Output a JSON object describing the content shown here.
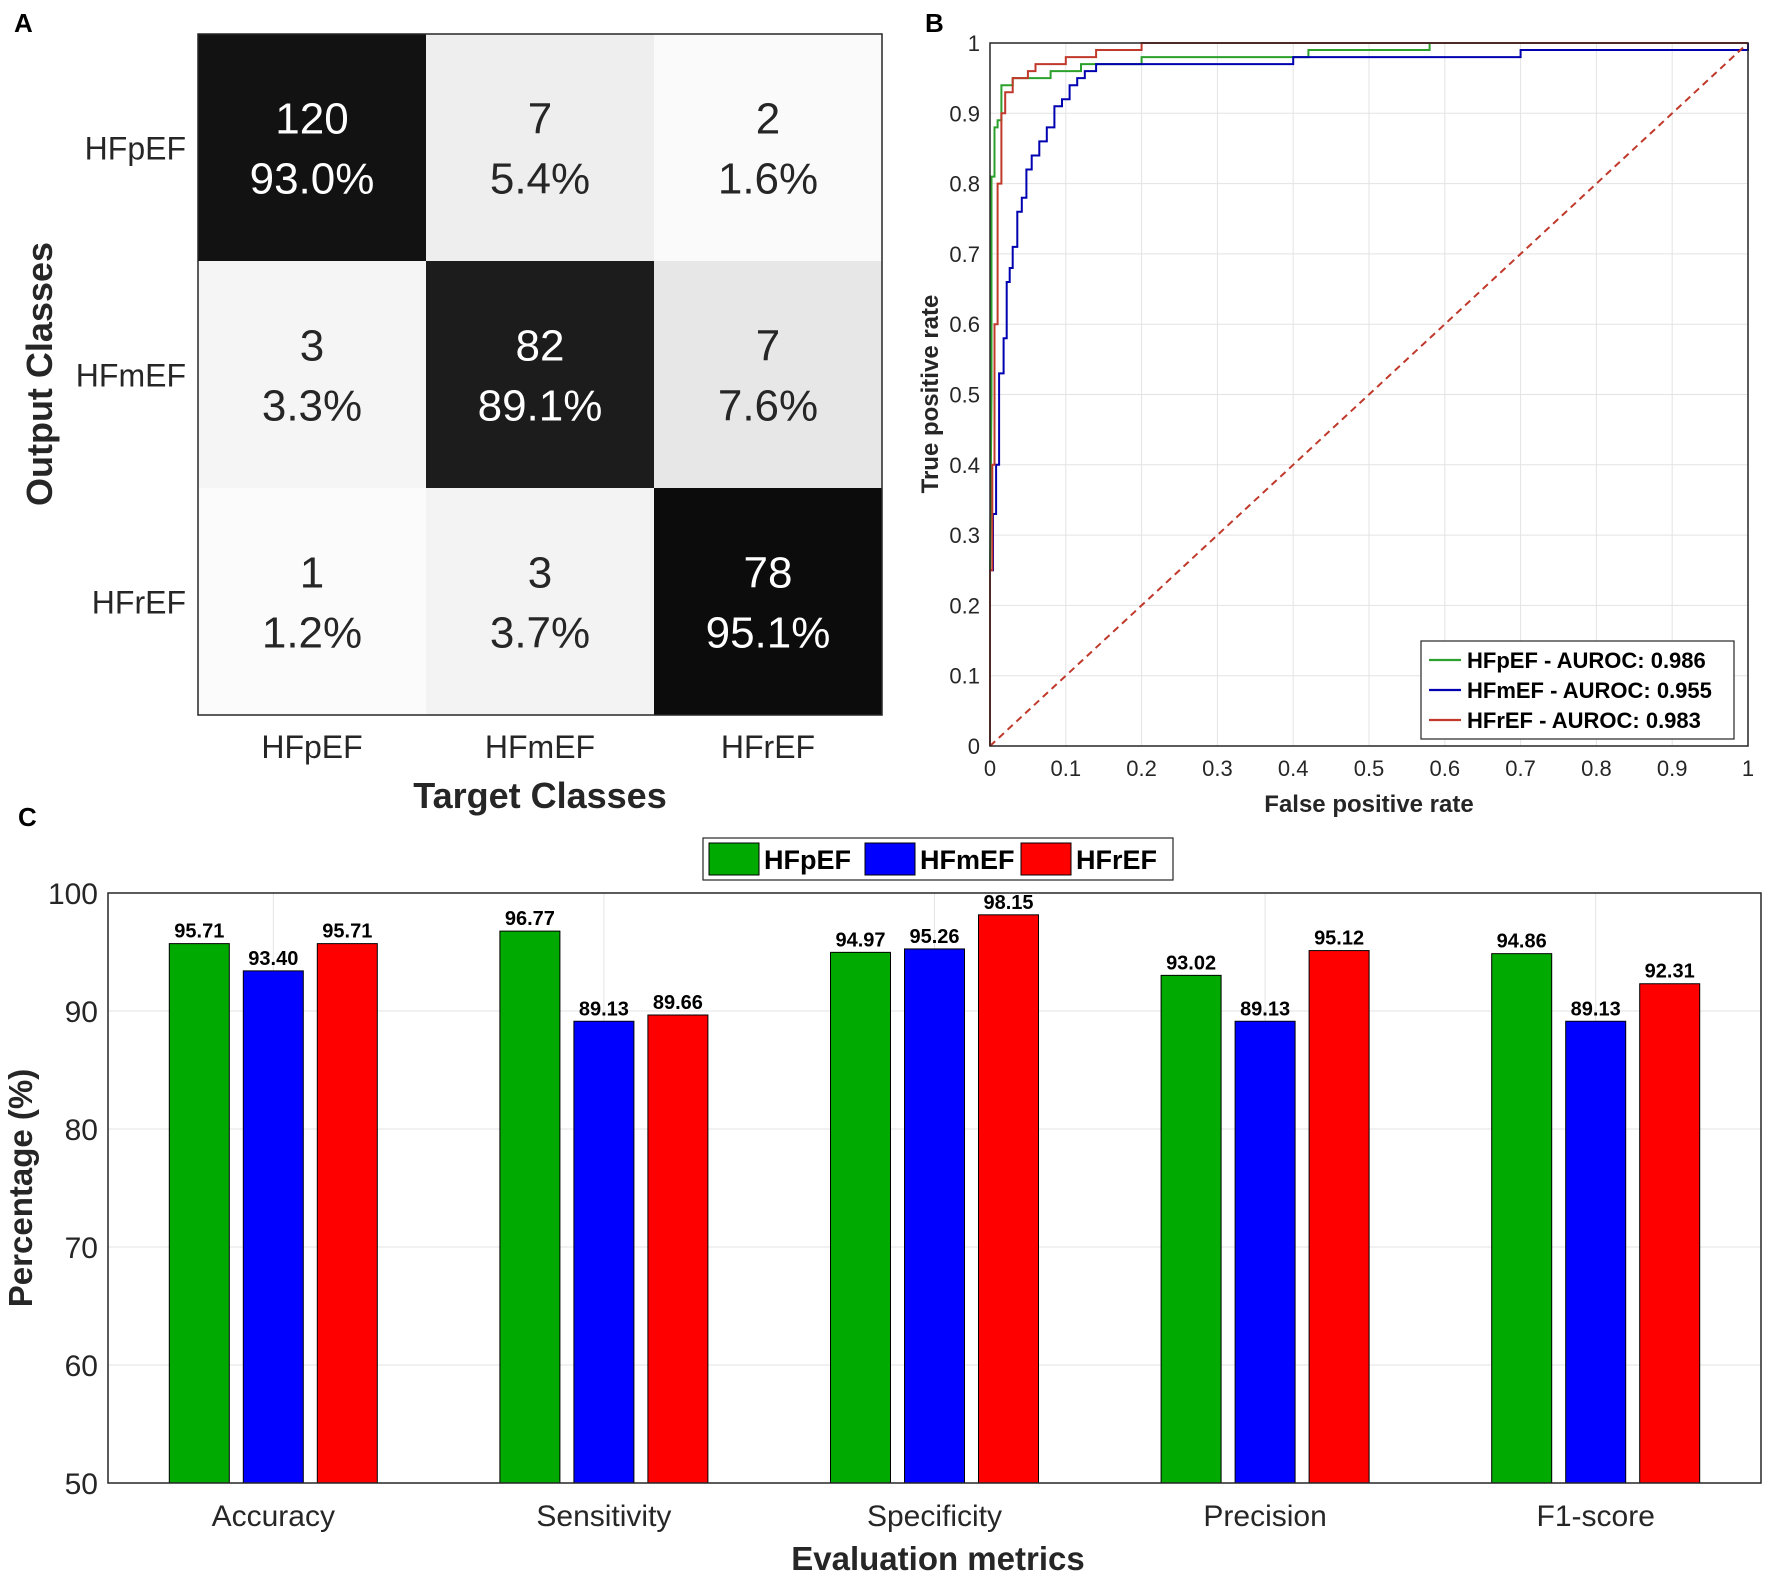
{
  "panels": {
    "a": "A",
    "b": "B",
    "c": "C"
  },
  "chart_data": [
    {
      "type": "heatmap",
      "title": "",
      "xlabel": "Target Classes",
      "ylabel": "Output Classes",
      "x_categories": [
        "HFpEF",
        "HFmEF",
        "HFrEF"
      ],
      "y_categories": [
        "HFpEF",
        "HFmEF",
        "HFrEF"
      ],
      "cells": [
        [
          {
            "count": "120",
            "pct": "93.0%",
            "value": 0.93
          },
          {
            "count": "7",
            "pct": "5.4%",
            "value": 0.054
          },
          {
            "count": "2",
            "pct": "1.6%",
            "value": 0.016
          }
        ],
        [
          {
            "count": "3",
            "pct": "3.3%",
            "value": 0.033
          },
          {
            "count": "82",
            "pct": "89.1%",
            "value": 0.891
          },
          {
            "count": "7",
            "pct": "7.6%",
            "value": 0.076
          }
        ],
        [
          {
            "count": "1",
            "pct": "1.2%",
            "value": 0.012
          },
          {
            "count": "3",
            "pct": "3.7%",
            "value": 0.037
          },
          {
            "count": "78",
            "pct": "95.1%",
            "value": 0.951
          }
        ]
      ]
    },
    {
      "type": "line",
      "title": "",
      "xlabel": "False positive rate",
      "ylabel": "True positive rate",
      "xlim": [
        0,
        1
      ],
      "ylim": [
        0,
        1
      ],
      "xticks": [
        "0",
        "0.1",
        "0.2",
        "0.3",
        "0.4",
        "0.5",
        "0.6",
        "0.7",
        "0.8",
        "0.9",
        "1"
      ],
      "yticks": [
        "0",
        "0.1",
        "0.2",
        "0.3",
        "0.4",
        "0.5",
        "0.6",
        "0.7",
        "0.8",
        "0.9",
        "1"
      ],
      "grid": true,
      "legend_position": "bottom-right",
      "series": [
        {
          "name": "HFpEF - AUROC: 0.986",
          "color": "#2ca02c",
          "points": [
            [
              0,
              0
            ],
            [
              0,
              0.25
            ],
            [
              0.002,
              0.5
            ],
            [
              0.002,
              0.81
            ],
            [
              0.006,
              0.81
            ],
            [
              0.006,
              0.88
            ],
            [
              0.01,
              0.88
            ],
            [
              0.01,
              0.89
            ],
            [
              0.015,
              0.89
            ],
            [
              0.015,
              0.94
            ],
            [
              0.03,
              0.94
            ],
            [
              0.03,
              0.95
            ],
            [
              0.08,
              0.95
            ],
            [
              0.08,
              0.96
            ],
            [
              0.12,
              0.96
            ],
            [
              0.12,
              0.97
            ],
            [
              0.2,
              0.97
            ],
            [
              0.2,
              0.98
            ],
            [
              0.42,
              0.98
            ],
            [
              0.42,
              0.99
            ],
            [
              0.58,
              0.99
            ],
            [
              0.58,
              1
            ],
            [
              1,
              1
            ]
          ]
        },
        {
          "name": "HFmEF - AUROC: 0.955",
          "color": "#0000b0",
          "points": [
            [
              0,
              0
            ],
            [
              0,
              0.25
            ],
            [
              0.004,
              0.25
            ],
            [
              0.004,
              0.33
            ],
            [
              0.008,
              0.33
            ],
            [
              0.008,
              0.4
            ],
            [
              0.012,
              0.4
            ],
            [
              0.012,
              0.53
            ],
            [
              0.018,
              0.53
            ],
            [
              0.018,
              0.58
            ],
            [
              0.022,
              0.58
            ],
            [
              0.022,
              0.66
            ],
            [
              0.026,
              0.66
            ],
            [
              0.026,
              0.68
            ],
            [
              0.03,
              0.68
            ],
            [
              0.03,
              0.71
            ],
            [
              0.036,
              0.71
            ],
            [
              0.036,
              0.76
            ],
            [
              0.042,
              0.76
            ],
            [
              0.042,
              0.78
            ],
            [
              0.048,
              0.78
            ],
            [
              0.048,
              0.82
            ],
            [
              0.055,
              0.82
            ],
            [
              0.055,
              0.84
            ],
            [
              0.065,
              0.84
            ],
            [
              0.065,
              0.86
            ],
            [
              0.075,
              0.86
            ],
            [
              0.075,
              0.88
            ],
            [
              0.085,
              0.88
            ],
            [
              0.085,
              0.91
            ],
            [
              0.095,
              0.91
            ],
            [
              0.095,
              0.92
            ],
            [
              0.105,
              0.92
            ],
            [
              0.105,
              0.94
            ],
            [
              0.115,
              0.94
            ],
            [
              0.115,
              0.95
            ],
            [
              0.125,
              0.95
            ],
            [
              0.125,
              0.96
            ],
            [
              0.14,
              0.96
            ],
            [
              0.14,
              0.97
            ],
            [
              0.4,
              0.97
            ],
            [
              0.4,
              0.98
            ],
            [
              0.7,
              0.98
            ],
            [
              0.7,
              0.99
            ],
            [
              1,
              0.99
            ],
            [
              1,
              1
            ]
          ]
        },
        {
          "name": "HFrEF - AUROC: 0.983",
          "color": "#c0392b",
          "points": [
            [
              0,
              0
            ],
            [
              0,
              0.25
            ],
            [
              0.003,
              0.25
            ],
            [
              0.003,
              0.4
            ],
            [
              0.006,
              0.4
            ],
            [
              0.006,
              0.6
            ],
            [
              0.01,
              0.6
            ],
            [
              0.01,
              0.8
            ],
            [
              0.015,
              0.8
            ],
            [
              0.015,
              0.9
            ],
            [
              0.02,
              0.9
            ],
            [
              0.02,
              0.93
            ],
            [
              0.03,
              0.93
            ],
            [
              0.03,
              0.95
            ],
            [
              0.05,
              0.95
            ],
            [
              0.05,
              0.96
            ],
            [
              0.06,
              0.96
            ],
            [
              0.06,
              0.97
            ],
            [
              0.1,
              0.97
            ],
            [
              0.1,
              0.98
            ],
            [
              0.14,
              0.98
            ],
            [
              0.14,
              0.99
            ],
            [
              0.2,
              0.99
            ],
            [
              0.2,
              1
            ],
            [
              1,
              1
            ]
          ]
        },
        {
          "name": "",
          "color": "#c0392b",
          "dashed": true,
          "points": [
            [
              0,
              0
            ],
            [
              1,
              1
            ]
          ]
        }
      ]
    },
    {
      "type": "bar",
      "title": "",
      "xlabel": "Evaluation metrics",
      "ylabel": "Percentage (%)",
      "ylim": [
        50,
        100
      ],
      "yticks": [
        "50",
        "60",
        "70",
        "80",
        "90",
        "100"
      ],
      "categories": [
        "Accuracy",
        "Sensitivity",
        "Specificity",
        "Precision",
        "F1-score"
      ],
      "legend_position": "top-center",
      "series": [
        {
          "name": "HFpEF",
          "color": "#00aa00",
          "values": [
            95.71,
            96.77,
            94.97,
            93.02,
            94.86
          ],
          "labels": [
            "95.71",
            "96.77",
            "94.97",
            "93.02",
            "94.86"
          ]
        },
        {
          "name": "HFmEF",
          "color": "#0000ff",
          "values": [
            93.4,
            89.13,
            95.26,
            89.13,
            89.13
          ],
          "labels": [
            "93.40",
            "89.13",
            "95.26",
            "89.13",
            "89.13"
          ]
        },
        {
          "name": "HFrEF",
          "color": "#ff0000",
          "values": [
            95.71,
            89.66,
            98.15,
            95.12,
            92.31
          ],
          "labels": [
            "95.71",
            "89.66",
            "98.15",
            "95.12",
            "92.31"
          ]
        }
      ]
    }
  ]
}
